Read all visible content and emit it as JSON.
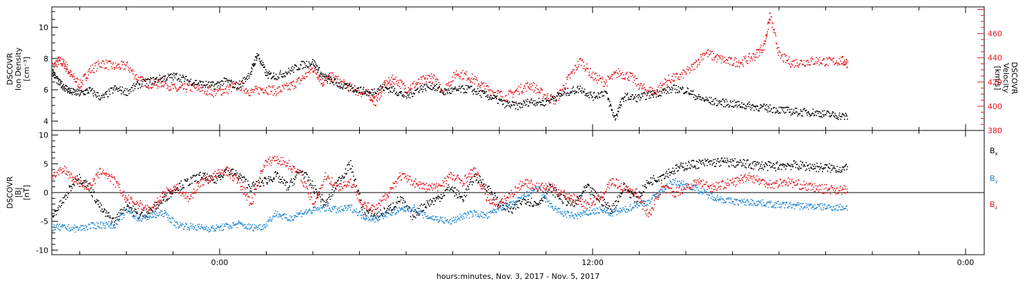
{
  "chart_data": [
    {
      "type": "scatter",
      "panel": "top",
      "ylabel_left": [
        "DSCOVR",
        "Ion Density",
        "[cm⁻³]"
      ],
      "ylabel_right": [
        "DSCOVR",
        "Velocity",
        "[km/s]"
      ],
      "ylim_left": [
        3.4,
        11.3
      ],
      "yticks_left": [
        "4",
        "6",
        "8",
        "10"
      ],
      "ylim_right": [
        380,
        482
      ],
      "yticks_right": [
        "380",
        "400",
        "420",
        "440",
        "460"
      ],
      "series": [
        {
          "name": "Ion Density",
          "axis": "left",
          "color": "#000000",
          "x": [
            -5.4,
            -5.2,
            -5.0,
            -4.8,
            -4.5,
            -4.2,
            -3.8,
            -3.4,
            -3.0,
            -2.6,
            -2.2,
            -1.8,
            -1.4,
            -1.0,
            -0.6,
            -0.2,
            0.2,
            0.6,
            1.0,
            1.2,
            1.5,
            1.8,
            2.2,
            2.6,
            3.0,
            3.3,
            3.6,
            4.0,
            4.4,
            4.8,
            5.2,
            5.6,
            6.0,
            6.4,
            6.8,
            7.2,
            7.6,
            8.0,
            8.4,
            8.8,
            9.2,
            9.6,
            10.0,
            10.4,
            10.8,
            11.2,
            11.6,
            12.0,
            12.4,
            12.7,
            13.0,
            13.4,
            13.8,
            14.2,
            14.6,
            15.0,
            15.4,
            15.8,
            16.2,
            16.6,
            17.0,
            17.4,
            17.8,
            18.2,
            18.6,
            19.0,
            19.4,
            19.8,
            20.2
          ],
          "y": [
            7.2,
            6.5,
            6.2,
            5.9,
            5.8,
            6.0,
            5.5,
            6.1,
            5.9,
            6.4,
            6.6,
            6.8,
            6.9,
            6.6,
            6.4,
            6.3,
            6.6,
            6.2,
            7.2,
            8.3,
            7.0,
            6.9,
            7.2,
            7.6,
            7.8,
            6.9,
            6.6,
            6.2,
            6.1,
            5.8,
            6.2,
            6.0,
            5.6,
            6.1,
            6.3,
            5.9,
            6.0,
            6.1,
            5.8,
            5.5,
            5.1,
            5.0,
            5.3,
            5.2,
            5.6,
            5.9,
            6.1,
            5.6,
            5.9,
            4.2,
            5.6,
            5.5,
            5.7,
            5.9,
            6.1,
            6.0,
            5.5,
            5.3,
            5.2,
            5.1,
            5.0,
            4.9,
            4.8,
            4.7,
            4.6,
            4.6,
            4.5,
            4.4,
            4.3
          ]
        },
        {
          "name": "Velocity",
          "axis": "right",
          "color": "#e8141c",
          "x": [
            -5.4,
            -5.2,
            -5.0,
            -4.8,
            -4.5,
            -4.2,
            -3.8,
            -3.4,
            -3.0,
            -2.6,
            -2.2,
            -1.8,
            -1.4,
            -1.0,
            -0.6,
            -0.2,
            0.2,
            0.6,
            1.0,
            1.4,
            1.8,
            2.2,
            2.6,
            3.0,
            3.3,
            3.6,
            4.0,
            4.4,
            4.8,
            5.0,
            5.3,
            5.6,
            6.0,
            6.4,
            6.8,
            7.2,
            7.6,
            8.0,
            8.4,
            8.8,
            9.2,
            9.6,
            10.0,
            10.4,
            10.8,
            11.2,
            11.6,
            12.0,
            12.4,
            12.8,
            13.2,
            13.6,
            14.0,
            14.4,
            14.8,
            15.2,
            15.6,
            16.0,
            16.4,
            16.8,
            17.2,
            17.5,
            17.7,
            18.0,
            18.4,
            18.8,
            19.2,
            19.6,
            20.0,
            20.2
          ],
          "y": [
            432,
            438,
            435,
            426,
            418,
            430,
            436,
            433,
            434,
            422,
            418,
            420,
            414,
            416,
            415,
            412,
            414,
            418,
            412,
            415,
            413,
            416,
            422,
            432,
            420,
            425,
            418,
            413,
            410,
            404,
            418,
            423,
            415,
            420,
            425,
            413,
            428,
            425,
            418,
            412,
            408,
            414,
            418,
            410,
            405,
            423,
            438,
            425,
            420,
            428,
            425,
            415,
            412,
            422,
            425,
            432,
            445,
            440,
            437,
            437,
            442,
            450,
            475,
            442,
            436,
            437,
            438,
            437,
            438,
            436
          ]
        }
      ]
    },
    {
      "type": "scatter",
      "panel": "bottom",
      "ylabel_left": [
        "DSCOVR",
        "|B|",
        "[nT]"
      ],
      "ylim": [
        -10.8,
        10.8
      ],
      "yticks": [
        "-10",
        "-5",
        "0",
        "5",
        "10"
      ],
      "xlabel": "hours:minutes, Nov.  3, 2017 - Nov.  5, 2017",
      "xticks": [
        "0:00",
        "12:00",
        "0:00"
      ],
      "x_tick_hours": [
        0,
        12,
        24
      ],
      "xlim_hours": [
        -5.4,
        24.6
      ],
      "legend_position": "right",
      "series": [
        {
          "name": "Bx",
          "label_main": "B",
          "label_sub": "x",
          "color": "#000000",
          "x": [
            -5.4,
            -5.0,
            -4.6,
            -4.2,
            -3.8,
            -3.4,
            -3.0,
            -2.6,
            -2.2,
            -1.8,
            -1.4,
            -1.0,
            -0.6,
            -0.2,
            0.2,
            0.6,
            1.0,
            1.4,
            1.8,
            2.2,
            2.6,
            3.0,
            3.4,
            3.8,
            4.2,
            4.6,
            5.0,
            5.4,
            5.8,
            6.2,
            6.6,
            7.0,
            7.4,
            7.8,
            8.2,
            8.6,
            9.0,
            9.4,
            9.8,
            10.2,
            10.6,
            11.0,
            11.4,
            11.8,
            12.2,
            12.6,
            13.0,
            13.4,
            13.8,
            14.2,
            14.6,
            15.0,
            15.4,
            15.8,
            16.2,
            16.6,
            17.0,
            17.4,
            17.8,
            18.2,
            18.6,
            19.0,
            19.4,
            19.8,
            20.2
          ],
          "y": [
            -4,
            -1,
            3,
            1,
            -3,
            -5,
            -2,
            -4,
            -3,
            -1,
            1,
            2,
            3,
            2,
            4,
            3,
            1,
            2,
            3,
            1,
            4,
            1,
            -2,
            2,
            5,
            -3,
            -4,
            -3,
            -1,
            -4,
            -2,
            -1,
            1,
            -1,
            3,
            1,
            -2,
            -3,
            -1,
            -2,
            1,
            -1,
            -2,
            1,
            -1,
            -3,
            1,
            -1,
            2,
            3,
            4,
            4.8,
            5.1,
            5.3,
            5.4,
            5.2,
            5.0,
            4.8,
            4.6,
            4.9,
            4.8,
            4.6,
            4.4,
            4.3,
            4.2
          ]
        },
        {
          "name": "By",
          "label_main": "B",
          "label_sub": "y",
          "color": "#1e88d4",
          "x": [
            -5.4,
            -5.0,
            -4.6,
            -4.2,
            -3.8,
            -3.4,
            -3.0,
            -2.6,
            -2.2,
            -1.8,
            -1.4,
            -1.0,
            -0.6,
            -0.2,
            0.2,
            0.6,
            1.0,
            1.4,
            1.8,
            2.2,
            2.6,
            3.0,
            3.4,
            3.8,
            4.2,
            4.6,
            5.0,
            5.4,
            5.8,
            6.2,
            6.6,
            7.0,
            7.4,
            7.8,
            8.2,
            8.6,
            9.0,
            9.4,
            9.8,
            10.2,
            10.6,
            11.0,
            11.4,
            11.8,
            12.2,
            12.6,
            13.0,
            13.4,
            13.8,
            14.2,
            14.6,
            15.0,
            15.4,
            15.8,
            16.2,
            16.6,
            17.0,
            17.4,
            17.8,
            18.2,
            18.6,
            19.0,
            19.4,
            19.8,
            20.2
          ],
          "y": [
            -6,
            -6,
            -6.2,
            -5.8,
            -5.5,
            -5.6,
            -3,
            -4.5,
            -4,
            -3.5,
            -5.5,
            -5.8,
            -6,
            -6.2,
            -5.8,
            -5.4,
            -6,
            -5.8,
            -3.5,
            -4.5,
            -3.5,
            -3,
            -2.5,
            -3,
            -2.5,
            -4,
            -4.5,
            -3.5,
            -3,
            -2.5,
            -4,
            -4.5,
            -5,
            -4,
            -3.5,
            -4,
            -2.5,
            -2,
            -0.5,
            1,
            -2,
            -3.5,
            -4,
            -3.5,
            -3,
            -3.5,
            -3,
            -2,
            -1.5,
            0.5,
            2,
            1.5,
            0.5,
            -0.5,
            -1.2,
            -1.5,
            -1.6,
            -1.7,
            -2.0,
            -2.1,
            -2.2,
            -2.3,
            -2.4,
            -2.5,
            -2.5
          ]
        },
        {
          "name": "Bz",
          "label_main": "B",
          "label_sub": "z",
          "color": "#e8141c",
          "x": [
            -5.4,
            -5.0,
            -4.6,
            -4.2,
            -3.8,
            -3.4,
            -3.0,
            -2.6,
            -2.2,
            -1.8,
            -1.4,
            -1.0,
            -0.6,
            -0.2,
            0.2,
            0.6,
            1.0,
            1.4,
            1.8,
            2.2,
            2.6,
            3.0,
            3.4,
            3.8,
            4.2,
            4.6,
            5.0,
            5.4,
            5.8,
            6.2,
            6.6,
            7.0,
            7.4,
            7.8,
            8.2,
            8.6,
            9.0,
            9.4,
            9.8,
            10.2,
            10.6,
            11.0,
            11.4,
            11.8,
            12.2,
            12.6,
            13.0,
            13.4,
            13.8,
            14.2,
            14.6,
            15.0,
            15.4,
            15.8,
            16.2,
            16.6,
            17.0,
            17.4,
            17.8,
            18.2,
            18.6,
            19.0,
            19.4,
            19.8,
            20.2
          ],
          "y": [
            3,
            4,
            2,
            1,
            4,
            2,
            -1,
            -2,
            -3,
            0,
            1,
            -1,
            2,
            3,
            4,
            2,
            -2,
            5,
            6,
            5,
            3,
            -2,
            3,
            1,
            2,
            -2,
            -3,
            0,
            3,
            2,
            1,
            1,
            3,
            2,
            4,
            -1,
            -2,
            0,
            2,
            1,
            1,
            0,
            -1,
            -2,
            -1,
            2,
            1,
            0,
            -4,
            1,
            0,
            1,
            2,
            1,
            1.5,
            2,
            3,
            2,
            1.5,
            2,
            1.5,
            1,
            0.7,
            0.6,
            0.5
          ]
        }
      ]
    }
  ]
}
